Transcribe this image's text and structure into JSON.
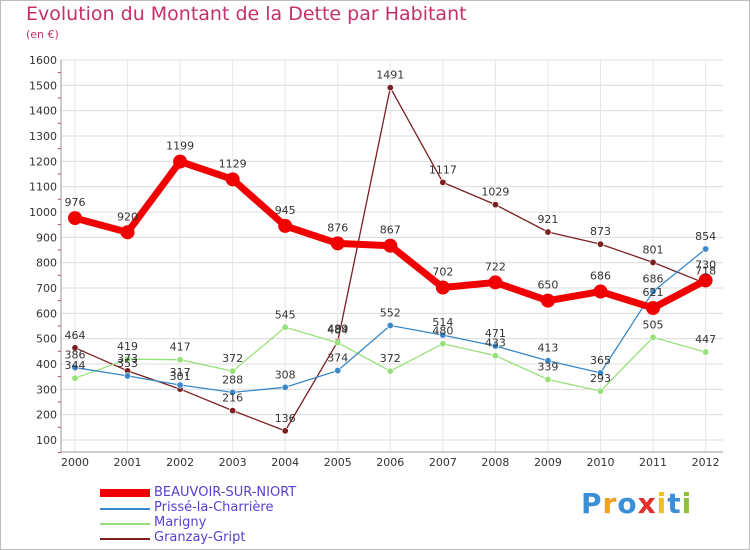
{
  "title": "Evolution du Montant de la Dette par Habitant",
  "unit": "(en €)",
  "logo": {
    "letters": [
      "P",
      "r",
      "o",
      "x",
      "i",
      "t",
      "i"
    ],
    "colors": [
      "#3a8fd8",
      "#f0a020",
      "#3a8fd8",
      "#e03030",
      "#f0c020",
      "#3a8fd8",
      "#90c040"
    ]
  },
  "chart_data": {
    "type": "line",
    "x": [
      "2000",
      "2001",
      "2002",
      "2003",
      "2004",
      "2005",
      "2006",
      "2007",
      "2008",
      "2009",
      "2010",
      "2011",
      "2012"
    ],
    "y_ticks": [
      "100",
      "200",
      "300",
      "400",
      "500",
      "600",
      "700",
      "800",
      "900",
      "1000",
      "1100",
      "1200",
      "1300",
      "1400",
      "1500",
      "1600"
    ],
    "ylim": [
      100,
      1600
    ],
    "grid": true,
    "legend_position": "bottom-left",
    "series": [
      {
        "name": "BEAUVOIR-SUR-NIORT",
        "color": "#f00000",
        "values": [
          976,
          920,
          1199,
          1129,
          945,
          876,
          867,
          702,
          722,
          650,
          686,
          621,
          730
        ]
      },
      {
        "name": "Prissé-la-Charrière",
        "color": "#3a88c8",
        "values": [
          386,
          353,
          317,
          288,
          308,
          374,
          552,
          514,
          471,
          413,
          365,
          686,
          854
        ]
      },
      {
        "name": "Marigny",
        "color": "#98e07a",
        "values": [
          344,
          419,
          417,
          372,
          545,
          484,
          372,
          480,
          433,
          339,
          293,
          505,
          447
        ]
      },
      {
        "name": "Granzay-Gript",
        "color": "#7a2020",
        "values": [
          464,
          373,
          301,
          216,
          136,
          489,
          1491,
          1117,
          1029,
          921,
          873,
          801,
          718
        ]
      }
    ]
  }
}
